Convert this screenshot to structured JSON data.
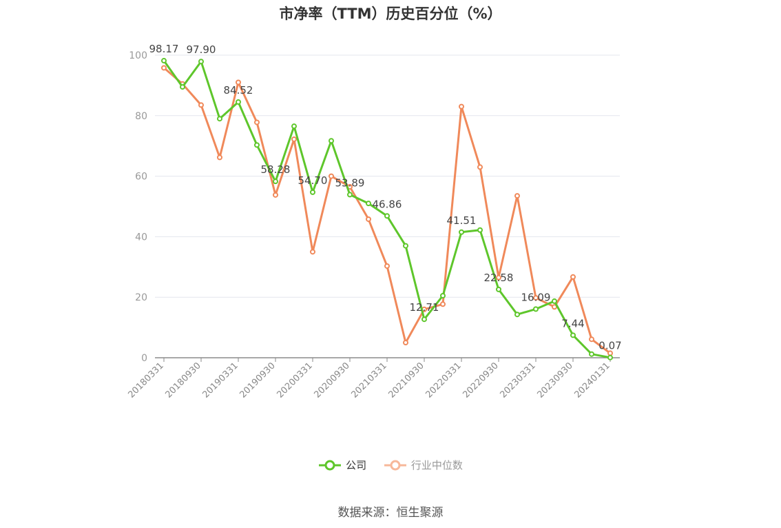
{
  "chart_data": {
    "type": "line",
    "title": "市净率（TTM）历史百分位（%）",
    "ylim": [
      0,
      100
    ],
    "yticks": [
      0,
      20,
      40,
      60,
      80,
      100
    ],
    "x": [
      "20180331",
      "20180630",
      "20180930",
      "20181231",
      "20190331",
      "20190630",
      "20190930",
      "20191231",
      "20200331",
      "20200630",
      "20200930",
      "20201231",
      "20210331",
      "20210630",
      "20210930",
      "20211231",
      "20220331",
      "20220630",
      "20220930",
      "20221231",
      "20230331",
      "20230630",
      "20230930",
      "20231231",
      "20240131"
    ],
    "x_tick_labels": [
      "20180331",
      "20180930",
      "20190331",
      "20190930",
      "20200331",
      "20200930",
      "20210331",
      "20210930",
      "20220331",
      "20220930",
      "20230331",
      "20230930",
      "20240131"
    ],
    "series": [
      {
        "name": "公司",
        "color": "#5ec62b",
        "values": [
          98.17,
          89.5,
          97.9,
          79.0,
          84.52,
          70.3,
          58.28,
          76.5,
          54.7,
          71.7,
          53.89,
          51.0,
          46.86,
          37.0,
          12.71,
          20.5,
          41.51,
          42.2,
          22.58,
          14.3,
          16.09,
          18.7,
          7.44,
          1.2,
          0.07
        ],
        "labels": {
          "0": "98.17",
          "2": "97.90",
          "4": "84.52",
          "6": "58.28",
          "8": "54.70",
          "10": "53.89",
          "12": "46.86",
          "14": "12.71",
          "16": "41.51",
          "18": "22.58",
          "20": "16.09",
          "22": "7.44",
          "24": "0.07"
        }
      },
      {
        "name": "行业中位数",
        "color": "#f0895a",
        "values": [
          95.8,
          90.5,
          83.5,
          66.2,
          91.0,
          77.8,
          53.8,
          72.2,
          35.0,
          60.0,
          56.5,
          45.8,
          30.3,
          5.0,
          16.0,
          17.7,
          83.0,
          63.0,
          26.5,
          53.5,
          19.8,
          16.8,
          26.7,
          6.1,
          1.5
        ]
      }
    ],
    "grid": true,
    "legend_position": "bottom"
  },
  "legend": {
    "company": "公司",
    "industry": "行业中位数"
  },
  "source": "数据来源：恒生聚源"
}
